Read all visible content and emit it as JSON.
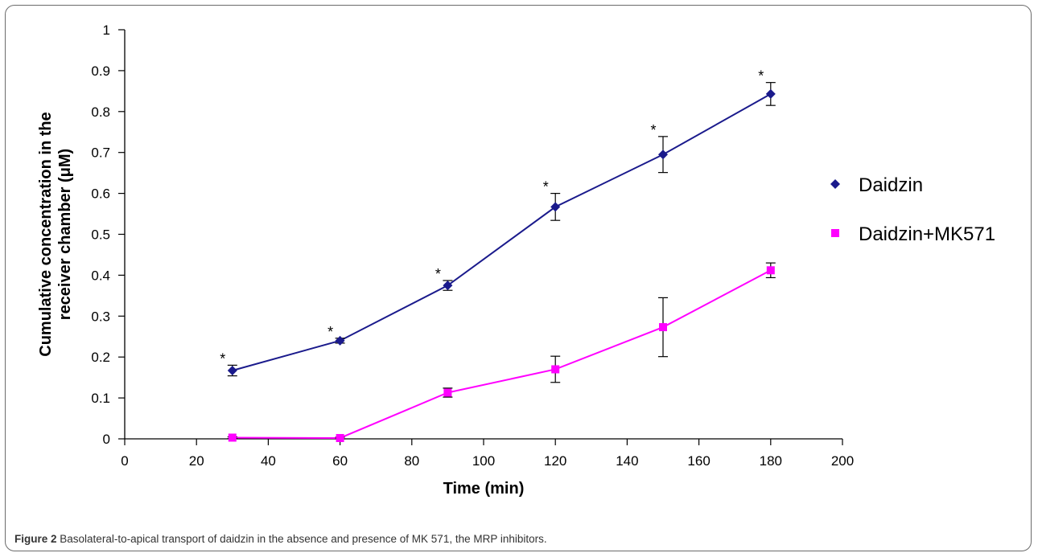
{
  "caption": {
    "label": "Figure 2",
    "text": "Basolateral-to-apical transport of daidzin in the absence and presence of MK 571, the MRP inhibitors."
  },
  "chart_data": {
    "type": "line",
    "title": "",
    "xlabel": "Time (min)",
    "ylabel": "Cumulative concentration in the receiver chamber (μM)",
    "xlim": [
      0,
      200
    ],
    "ylim": [
      0,
      1
    ],
    "x_ticks": [
      0,
      20,
      40,
      60,
      80,
      100,
      120,
      140,
      160,
      180,
      200
    ],
    "y_ticks": [
      0,
      0.1,
      0.2,
      0.3,
      0.4,
      0.5,
      0.6,
      0.7,
      0.8,
      0.9,
      1
    ],
    "grid": false,
    "legend_position": "right",
    "series": [
      {
        "name": "Daidzin",
        "color": "#1a1a8c",
        "marker": "diamond",
        "x": [
          30,
          60,
          90,
          120,
          150,
          180
        ],
        "y": [
          0.167,
          0.24,
          0.375,
          0.567,
          0.695,
          0.843
        ],
        "error": [
          0.013,
          0.006,
          0.012,
          0.033,
          0.044,
          0.028
        ],
        "significance": [
          "*",
          "*",
          "*",
          "*",
          "*",
          "*"
        ]
      },
      {
        "name": "Daidzin+MK571",
        "color": "#ff00ff",
        "marker": "square",
        "x": [
          30,
          60,
          90,
          120,
          150,
          180
        ],
        "y": [
          0.003,
          0.002,
          0.113,
          0.17,
          0.273,
          0.412
        ],
        "error": [
          0.002,
          0.002,
          0.011,
          0.032,
          0.072,
          0.018
        ],
        "significance": [
          "",
          "",
          "",
          "",
          "",
          ""
        ]
      }
    ]
  }
}
